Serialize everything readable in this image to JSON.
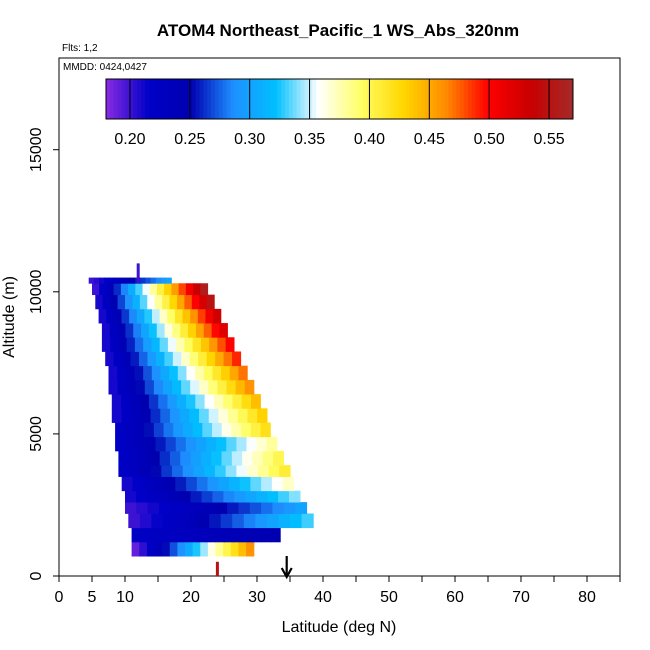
{
  "chart_data": {
    "type": "heatmap",
    "title": "ATOM4 Northeast_Pacific_1 WS_Abs_320nm",
    "subtitle_flights": "Flts: 1,2",
    "subtitle_dates": "MMDD: 0424,0427",
    "xlabel": "Latitude (deg N)",
    "ylabel": "Altitude (m)",
    "xlim": [
      0,
      85
    ],
    "ylim": [
      0,
      18000
    ],
    "x_ticks": [
      0,
      5,
      10,
      20,
      30,
      40,
      50,
      60,
      70,
      80
    ],
    "x_tick_labels": [
      "0",
      "5",
      "10",
      "20",
      "30",
      "40",
      "50",
      "60",
      "70",
      "80"
    ],
    "x_minor_ticks": [
      15,
      25,
      35,
      45,
      55,
      65,
      75,
      85
    ],
    "y_ticks": [
      0,
      5000,
      10000,
      15000
    ],
    "y_tick_labels": [
      "0",
      "5000",
      "10000",
      "15000"
    ],
    "grid": false,
    "arrow_latitude": 34.5,
    "colorbar": {
      "position": "top",
      "min": 0.18,
      "max": 0.57,
      "ticks": [
        0.2,
        0.25,
        0.3,
        0.35,
        0.4,
        0.45,
        0.5,
        0.55
      ],
      "tick_labels": [
        "0.20",
        "0.25",
        "0.30",
        "0.35",
        "0.40",
        "0.45",
        "0.50",
        "0.55"
      ],
      "colors": [
        "#8a2be2",
        "#0000c8",
        "#0000b0",
        "#1e90ff",
        "#00bfff",
        "#ffffff",
        "#ffff66",
        "#ffd700",
        "#ff8c00",
        "#ff0000",
        "#c80000",
        "#a52a2a"
      ]
    },
    "bands": [
      {
        "alt_bottom": 700,
        "alt_top": 1200,
        "lat_left": 11.0,
        "lat_right": 29.5,
        "min": 0.19,
        "max": 0.46
      },
      {
        "alt_bottom": 1200,
        "alt_top": 1700,
        "lat_left": 11.0,
        "lat_right": 33.5,
        "min": 0.22,
        "max": 0.25
      },
      {
        "alt_bottom": 1700,
        "alt_top": 2200,
        "lat_left": 10.5,
        "lat_right": 38.5,
        "min": 0.2,
        "max": 0.33
      },
      {
        "alt_bottom": 2200,
        "alt_top": 2600,
        "lat_left": 10.0,
        "lat_right": 37.5,
        "min": 0.2,
        "max": 0.3
      },
      {
        "alt_bottom": 2600,
        "alt_top": 3000,
        "lat_left": 10.0,
        "lat_right": 36.5,
        "min": 0.21,
        "max": 0.34
      },
      {
        "alt_bottom": 3000,
        "alt_top": 3500,
        "lat_left": 9.5,
        "lat_right": 35.5,
        "min": 0.21,
        "max": 0.37
      },
      {
        "alt_bottom": 3500,
        "alt_top": 3900,
        "lat_left": 9.0,
        "lat_right": 35.0,
        "min": 0.22,
        "max": 0.41
      },
      {
        "alt_bottom": 3900,
        "alt_top": 4400,
        "lat_left": 9.0,
        "lat_right": 34.0,
        "min": 0.22,
        "max": 0.4
      },
      {
        "alt_bottom": 4400,
        "alt_top": 4900,
        "lat_left": 8.5,
        "lat_right": 33.0,
        "min": 0.22,
        "max": 0.38
      },
      {
        "alt_bottom": 4900,
        "alt_top": 5400,
        "lat_left": 8.5,
        "lat_right": 32.0,
        "min": 0.22,
        "max": 0.42
      },
      {
        "alt_bottom": 5400,
        "alt_top": 5900,
        "lat_left": 8.0,
        "lat_right": 31.5,
        "min": 0.21,
        "max": 0.43
      },
      {
        "alt_bottom": 5900,
        "alt_top": 6400,
        "lat_left": 8.0,
        "lat_right": 30.5,
        "min": 0.21,
        "max": 0.44
      },
      {
        "alt_bottom": 6400,
        "alt_top": 6900,
        "lat_left": 7.5,
        "lat_right": 29.5,
        "min": 0.21,
        "max": 0.46
      },
      {
        "alt_bottom": 6900,
        "alt_top": 7400,
        "lat_left": 7.5,
        "lat_right": 28.5,
        "min": 0.21,
        "max": 0.47
      },
      {
        "alt_bottom": 7400,
        "alt_top": 7900,
        "lat_left": 7.0,
        "lat_right": 27.5,
        "min": 0.21,
        "max": 0.49
      },
      {
        "alt_bottom": 7900,
        "alt_top": 8400,
        "lat_left": 6.5,
        "lat_right": 26.5,
        "min": 0.21,
        "max": 0.5
      },
      {
        "alt_bottom": 8400,
        "alt_top": 8900,
        "lat_left": 6.5,
        "lat_right": 25.5,
        "min": 0.21,
        "max": 0.52
      },
      {
        "alt_bottom": 8900,
        "alt_top": 9400,
        "lat_left": 6.0,
        "lat_right": 24.5,
        "min": 0.21,
        "max": 0.53
      },
      {
        "alt_bottom": 9400,
        "alt_top": 9900,
        "lat_left": 5.5,
        "lat_right": 23.5,
        "min": 0.21,
        "max": 0.55
      },
      {
        "alt_bottom": 9900,
        "alt_top": 10300,
        "lat_left": 5.0,
        "lat_right": 22.5,
        "min": 0.2,
        "max": 0.56
      },
      {
        "alt_bottom": 10300,
        "alt_top": 10500,
        "lat_left": 4.5,
        "lat_right": 17.0,
        "min": 0.2,
        "max": 0.3
      }
    ],
    "spikes": [
      {
        "lat": 12.0,
        "alt_bottom": 10300,
        "alt_top": 11000,
        "value": 0.2
      },
      {
        "lat": 24.0,
        "alt_bottom": 0,
        "alt_top": 500,
        "value": 0.55
      }
    ]
  }
}
